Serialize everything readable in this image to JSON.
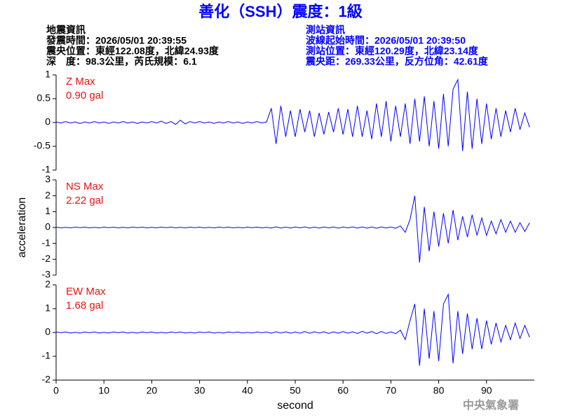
{
  "header": {
    "title": "善化（SSH）震度：1級",
    "left": [
      "地震資訊",
      "發震時間：2026/05/01 20:39:55",
      "震央位置：東經122.08度，北緯24.93度",
      "深　度：98.3公里，芮氏規模：6.1"
    ],
    "right": [
      "測站資訊",
      "波線起始時間：2026/05/01 20:39:50",
      "測站位置：東經120.29度，北緯23.14度",
      "震央距：269.33公里，反方位角：42.61度"
    ],
    "footer": "中央氣象署"
  },
  "chart_data": [
    {
      "type": "line",
      "annotations": [
        "Z Max",
        "0.90 gal"
      ],
      "xlim": [
        0,
        100
      ],
      "ylim": [
        -1,
        1
      ],
      "yticks": [
        -1,
        -0.5,
        0,
        0.5,
        1
      ],
      "x": [
        0,
        1,
        2,
        3,
        4,
        5,
        6,
        7,
        8,
        9,
        10,
        11,
        12,
        13,
        14,
        15,
        16,
        17,
        18,
        19,
        20,
        21,
        22,
        23,
        24,
        25,
        26,
        27,
        28,
        29,
        30,
        31,
        32,
        33,
        34,
        35,
        36,
        37,
        38,
        39,
        40,
        41,
        42,
        43,
        44,
        45,
        46,
        47,
        48,
        49,
        50,
        51,
        52,
        53,
        54,
        55,
        56,
        57,
        58,
        59,
        60,
        61,
        62,
        63,
        64,
        65,
        66,
        67,
        68,
        69,
        70,
        71,
        72,
        73,
        74,
        75,
        76,
        77,
        78,
        79,
        80,
        81,
        82,
        83,
        84,
        85,
        86,
        87,
        88,
        89,
        90,
        91,
        92,
        93,
        94,
        95,
        96,
        97,
        98,
        99
      ],
      "series": [
        {
          "color": "#0000ff",
          "values": [
            0.01,
            -0.01,
            0.02,
            -0.01,
            0.01,
            -0.02,
            0.01,
            -0.01,
            0.02,
            -0.01,
            0.01,
            -0.02,
            0.01,
            -0.01,
            0.02,
            -0.01,
            0.01,
            -0.02,
            0.01,
            -0.01,
            0.02,
            -0.01,
            0.03,
            -0.02,
            0.02,
            -0.04,
            0.05,
            -0.03,
            0.02,
            -0.01,
            0.02,
            -0.01,
            0.01,
            -0.02,
            0.01,
            -0.01,
            0.02,
            -0.01,
            0.01,
            -0.02,
            0.01,
            -0.01,
            0.02,
            -0.01,
            0.01,
            0.3,
            -0.45,
            0.35,
            -0.3,
            0.25,
            -0.3,
            0.28,
            -0.2,
            0.25,
            -0.3,
            0.2,
            -0.25,
            0.22,
            -0.2,
            0.3,
            -0.25,
            0.28,
            -0.3,
            0.35,
            -0.3,
            0.25,
            -0.35,
            0.4,
            -0.3,
            0.45,
            -0.4,
            0.35,
            -0.3,
            0.4,
            -0.45,
            0.5,
            -0.4,
            0.55,
            -0.5,
            0.45,
            -0.55,
            0.6,
            -0.5,
            0.7,
            0.9,
            -0.6,
            0.65,
            -0.55,
            0.5,
            -0.45,
            0.4,
            -0.35,
            0.3,
            -0.3,
            0.25,
            -0.2,
            0.3,
            -0.15,
            0.2,
            -0.1
          ]
        }
      ]
    },
    {
      "type": "line",
      "annotations": [
        "NS Max",
        "2.22 gal"
      ],
      "ylabel": "acceleration",
      "xlim": [
        0,
        100
      ],
      "ylim": [
        -3,
        3
      ],
      "yticks": [
        -3,
        -2,
        -1,
        0,
        1,
        2,
        3
      ],
      "x": [
        0,
        1,
        2,
        3,
        4,
        5,
        6,
        7,
        8,
        9,
        10,
        11,
        12,
        13,
        14,
        15,
        16,
        17,
        18,
        19,
        20,
        21,
        22,
        23,
        24,
        25,
        26,
        27,
        28,
        29,
        30,
        31,
        32,
        33,
        34,
        35,
        36,
        37,
        38,
        39,
        40,
        41,
        42,
        43,
        44,
        45,
        46,
        47,
        48,
        49,
        50,
        51,
        52,
        53,
        54,
        55,
        56,
        57,
        58,
        59,
        60,
        61,
        62,
        63,
        64,
        65,
        66,
        67,
        68,
        69,
        70,
        71,
        72,
        73,
        74,
        75,
        76,
        77,
        78,
        79,
        80,
        81,
        82,
        83,
        84,
        85,
        86,
        87,
        88,
        89,
        90,
        91,
        92,
        93,
        94,
        95,
        96,
        97,
        98,
        99
      ],
      "series": [
        {
          "color": "#0000ff",
          "values": [
            0.02,
            -0.02,
            0.01,
            -0.02,
            0.02,
            -0.01,
            0.02,
            -0.02,
            0.01,
            -0.02,
            0.02,
            -0.01,
            0.02,
            -0.02,
            0.01,
            -0.02,
            0.02,
            -0.01,
            0.02,
            -0.02,
            0.01,
            -0.02,
            0.02,
            -0.01,
            0.02,
            -0.02,
            0.01,
            -0.02,
            0.02,
            -0.01,
            0.02,
            -0.02,
            0.01,
            -0.02,
            0.02,
            -0.01,
            0.02,
            -0.02,
            0.01,
            -0.02,
            0.02,
            -0.01,
            0.02,
            -0.02,
            0.01,
            -0.03,
            0.04,
            -0.03,
            0.02,
            -0.03,
            0.03,
            -0.02,
            0.04,
            -0.03,
            0.02,
            -0.03,
            0.03,
            -0.02,
            0.03,
            -0.04,
            0.03,
            -0.02,
            0.04,
            -0.03,
            0.03,
            -0.04,
            0.03,
            -0.05,
            0.04,
            -0.03,
            0.03,
            -0.05,
            0.1,
            -0.3,
            0.5,
            2.0,
            -2.2,
            1.3,
            -1.5,
            1.0,
            -1.2,
            0.9,
            -1.0,
            1.1,
            -0.8,
            0.7,
            -0.6,
            0.8,
            -0.5,
            0.6,
            -0.5,
            0.4,
            -0.4,
            0.5,
            -0.3,
            0.4,
            -0.3,
            0.3,
            -0.25,
            0.3
          ]
        }
      ]
    },
    {
      "type": "line",
      "annotations": [
        "EW Max",
        "1.68 gal"
      ],
      "xlabel": "second",
      "xlim": [
        0,
        100
      ],
      "xticks": [
        0,
        10,
        20,
        30,
        40,
        50,
        60,
        70,
        80,
        90
      ],
      "ylim": [
        -2,
        2
      ],
      "yticks": [
        -2,
        -1,
        0,
        1,
        2
      ],
      "x": [
        0,
        1,
        2,
        3,
        4,
        5,
        6,
        7,
        8,
        9,
        10,
        11,
        12,
        13,
        14,
        15,
        16,
        17,
        18,
        19,
        20,
        21,
        22,
        23,
        24,
        25,
        26,
        27,
        28,
        29,
        30,
        31,
        32,
        33,
        34,
        35,
        36,
        37,
        38,
        39,
        40,
        41,
        42,
        43,
        44,
        45,
        46,
        47,
        48,
        49,
        50,
        51,
        52,
        53,
        54,
        55,
        56,
        57,
        58,
        59,
        60,
        61,
        62,
        63,
        64,
        65,
        66,
        67,
        68,
        69,
        70,
        71,
        72,
        73,
        74,
        75,
        76,
        77,
        78,
        79,
        80,
        81,
        82,
        83,
        84,
        85,
        86,
        87,
        88,
        89,
        90,
        91,
        92,
        93,
        94,
        95,
        96,
        97,
        98,
        99
      ],
      "series": [
        {
          "color": "#0000ff",
          "values": [
            0.02,
            -0.01,
            0.02,
            -0.02,
            0.01,
            -0.02,
            0.02,
            -0.01,
            0.02,
            -0.02,
            0.01,
            -0.02,
            0.02,
            -0.01,
            0.02,
            -0.02,
            0.01,
            -0.02,
            0.02,
            -0.01,
            0.02,
            -0.02,
            0.01,
            -0.02,
            0.02,
            -0.01,
            0.02,
            -0.02,
            0.01,
            -0.02,
            0.02,
            -0.01,
            0.02,
            -0.02,
            0.01,
            -0.02,
            0.02,
            -0.01,
            0.02,
            -0.02,
            0.01,
            -0.02,
            0.02,
            -0.01,
            0.02,
            -0.03,
            0.03,
            -0.02,
            0.03,
            -0.03,
            0.02,
            -0.03,
            0.04,
            -0.03,
            0.03,
            -0.02,
            0.03,
            -0.04,
            0.03,
            -0.03,
            0.04,
            -0.03,
            0.03,
            -0.04,
            0.05,
            -0.03,
            0.04,
            -0.05,
            0.04,
            -0.04,
            0.03,
            -0.05,
            0.1,
            -0.3,
            0.5,
            1.2,
            -1.4,
            1.0,
            -1.1,
            0.9,
            -1.2,
            1.2,
            1.6,
            -1.3,
            0.9,
            -0.9,
            0.8,
            -0.7,
            0.6,
            -0.7,
            0.5,
            -0.5,
            0.4,
            -0.4,
            0.3,
            -0.3,
            0.4,
            -0.25,
            0.3,
            -0.2
          ]
        }
      ]
    }
  ]
}
